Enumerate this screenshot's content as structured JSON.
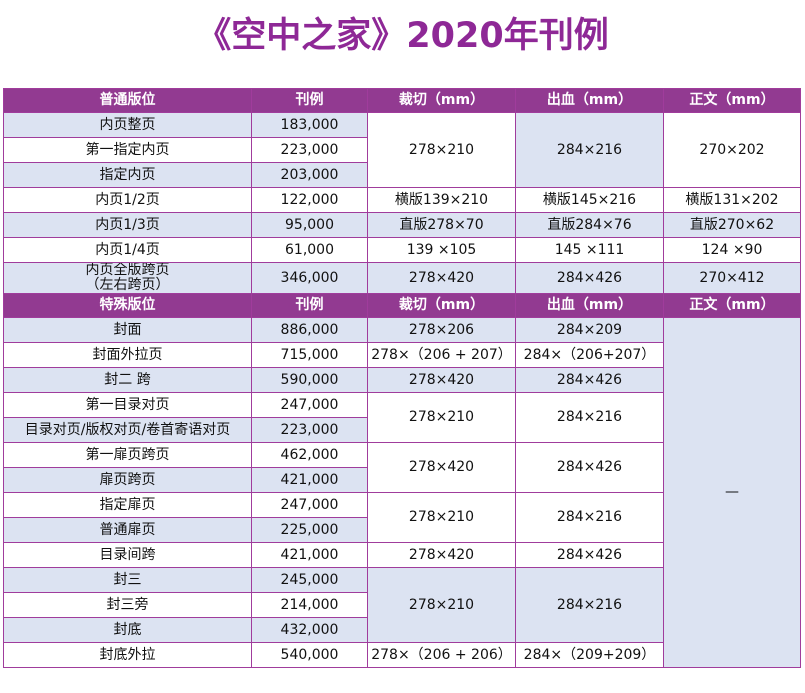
{
  "title": "《空中之家》2020年刊例",
  "regular_header": [
    "普通版位",
    "刊例",
    "裁切（mm）",
    "出血（mm）",
    "正文（mm）"
  ],
  "regular": {
    "r1": {
      "pos": "内页整页",
      "price": "183,000"
    },
    "r2": {
      "pos": "第一指定内页",
      "price": "223,000"
    },
    "r3": {
      "pos": "指定内页",
      "price": "203,000"
    },
    "r123_trim": "278×210",
    "r123_bleed": "284×216",
    "r123_text": "270×202",
    "r4": {
      "pos": "内页1/2页",
      "price": "122,000",
      "trim": "横版139×210",
      "bleed": "横版145×216",
      "text": "横版131×202"
    },
    "r5": {
      "pos": "内页1/3页",
      "price": "95,000",
      "trim": "直版278×70",
      "bleed": "直版284×76",
      "text": "直版270×62"
    },
    "r6": {
      "pos": "内页1/4页",
      "price": "61,000",
      "trim": "139 ×105",
      "bleed": "145 ×111",
      "text": "124 ×90"
    },
    "r7": {
      "pos_line1": "内页全版跨页",
      "pos_line2": "（左右跨页）",
      "price": "346,000",
      "trim": "278×420",
      "bleed": "284×426",
      "text": "270×412"
    }
  },
  "special_header": [
    "特殊版位",
    "刊例",
    "裁切（mm）",
    "出血（mm）",
    "正文（mm）"
  ],
  "special": {
    "s1": {
      "pos": "封面",
      "price": "886,000",
      "trim": "278×206",
      "bleed": "284×209"
    },
    "s2": {
      "pos": "封面外拉页",
      "price": "715,000",
      "trim": "278×（206 + 207）",
      "bleed": "284×（206+207）"
    },
    "s3": {
      "pos": "封二 跨",
      "price": "590,000",
      "trim": "278×420",
      "bleed": "284×426"
    },
    "s4": {
      "pos": "第一目录对页",
      "price": "247,000"
    },
    "s5": {
      "pos": "目录对页/版权对页/卷首寄语对页",
      "price": "223,000"
    },
    "s45_trim": "278×210",
    "s45_bleed": "284×216",
    "s6": {
      "pos": "第一扉页跨页",
      "price": "462,000"
    },
    "s7": {
      "pos": "扉页跨页",
      "price": "421,000"
    },
    "s67_trim": "278×420",
    "s67_bleed": "284×426",
    "s8": {
      "pos": "指定扉页",
      "price": "247,000"
    },
    "s9": {
      "pos": "普通扉页",
      "price": "225,000"
    },
    "s89_trim": "278×210",
    "s89_bleed": "284×216",
    "s10": {
      "pos": "目录间跨",
      "price": "421,000",
      "trim": "278×420",
      "bleed": "284×426"
    },
    "s11": {
      "pos": "封三",
      "price": "245,000"
    },
    "s12": {
      "pos": "封三旁",
      "price": "214,000"
    },
    "s13": {
      "pos": "封底",
      "price": "432,000"
    },
    "s1113_trim": "278×210",
    "s1113_bleed": "284×216",
    "s14": {
      "pos": "封底外拉",
      "price": "540,000",
      "trim": "278×（206 + 206）",
      "bleed": "284×（209+209）"
    },
    "text_all": "—"
  },
  "colors": {
    "title": "#8e2896",
    "header_bg": "#923a91",
    "row_lavender": "#dce3f2",
    "border": "#a03c9c"
  }
}
